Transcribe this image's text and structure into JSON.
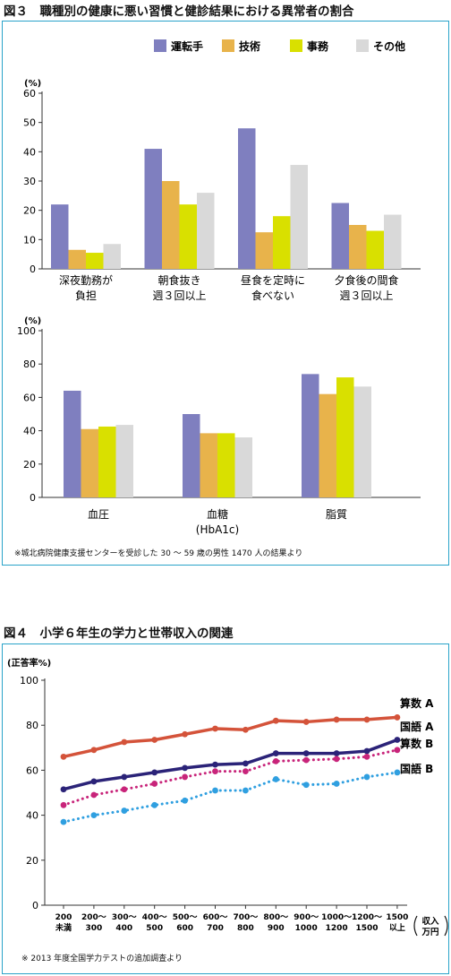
{
  "figure3": {
    "title": "図３　職種別の健康に悪い習慣と健診結果における異常者の割合",
    "legend": [
      "運転手",
      "技術",
      "事務",
      "その他"
    ],
    "colors": [
      "#7f7fbf",
      "#e8b34b",
      "#d9e000",
      "#d9d9d9"
    ],
    "note": "※城北病院健康支援センターを受診した 30 ～ 59 歳の男性 1470 人の結果より"
  },
  "figure4": {
    "title": "図４　小学６年生の学力と世帯収入の関連",
    "note": "※ 2013 年度全国学力テストの追加調査より"
  },
  "chart_data": [
    {
      "type": "bar",
      "ylabel": "(%)",
      "ylim": [
        0,
        60
      ],
      "yticks": [
        "0",
        "10",
        "20",
        "30",
        "40",
        "50",
        "60"
      ],
      "categories": [
        [
          "深夜勤務が",
          "負担"
        ],
        [
          "朝食抜き",
          "週３回以上"
        ],
        [
          "昼食を定時に",
          "食べない"
        ],
        [
          "夕食後の間食",
          "週３回以上"
        ]
      ],
      "series": [
        {
          "name": "運転手",
          "values": [
            22,
            41,
            48,
            22.5
          ]
        },
        {
          "name": "技術",
          "values": [
            6.5,
            30,
            12.5,
            15
          ]
        },
        {
          "name": "事務",
          "values": [
            5.5,
            22,
            18,
            13
          ]
        },
        {
          "name": "その他",
          "values": [
            8.5,
            26,
            35.5,
            18.5
          ]
        }
      ],
      "legend_position": "top-right"
    },
    {
      "type": "bar",
      "ylabel": "(%)",
      "ylim": [
        0,
        100
      ],
      "yticks": [
        "0",
        "20",
        "40",
        "60",
        "80",
        "100"
      ],
      "categories": [
        [
          "血圧"
        ],
        [
          "血糖",
          "(HbA1c)"
        ],
        [
          "脂質"
        ]
      ],
      "series": [
        {
          "name": "運転手",
          "values": [
            64,
            50,
            74
          ]
        },
        {
          "name": "技術",
          "values": [
            41,
            38.5,
            62
          ]
        },
        {
          "name": "事務",
          "values": [
            42.5,
            38.5,
            72
          ]
        },
        {
          "name": "その他",
          "values": [
            43.5,
            36,
            66.5
          ]
        }
      ]
    },
    {
      "type": "line",
      "ylabel": "(正答率%)",
      "xlabel": [
        "収入",
        "万円"
      ],
      "ylim": [
        0,
        100
      ],
      "yticks": [
        "0",
        "20",
        "40",
        "60",
        "80",
        "100"
      ],
      "categories": [
        [
          "200",
          "未満"
        ],
        [
          "200～",
          "300"
        ],
        [
          "300～",
          "400"
        ],
        [
          "400～",
          "500"
        ],
        [
          "500～",
          "600"
        ],
        [
          "600～",
          "700"
        ],
        [
          "700～",
          "800"
        ],
        [
          "800～",
          "900"
        ],
        [
          "900～",
          "1000"
        ],
        [
          "1000～",
          "1200"
        ],
        [
          "1200～",
          "1500"
        ],
        [
          "1500",
          "以上"
        ]
      ],
      "series": [
        {
          "name": "算数 A",
          "color": "#d4533a",
          "style": "solid",
          "values": [
            66,
            69,
            72.5,
            73.5,
            76,
            78.5,
            78,
            82,
            81.5,
            82.5,
            82.5,
            83.5
          ]
        },
        {
          "name": "国語 A",
          "color": "#2b2378",
          "style": "solid",
          "values": [
            51.5,
            55,
            57,
            59,
            61,
            62.5,
            63,
            67.5,
            67.5,
            67.5,
            68.5,
            73.5
          ]
        },
        {
          "name": "算数 B",
          "color": "#c8247a",
          "style": "dotted",
          "values": [
            44.5,
            49,
            51.5,
            54,
            57,
            59.5,
            59.5,
            64,
            64.5,
            65,
            66,
            69
          ]
        },
        {
          "name": "国語 B",
          "color": "#2f9fe0",
          "style": "dotted",
          "values": [
            37,
            40,
            42,
            44.5,
            46.5,
            51,
            51,
            56,
            53.5,
            54,
            57,
            59
          ]
        }
      ]
    }
  ]
}
